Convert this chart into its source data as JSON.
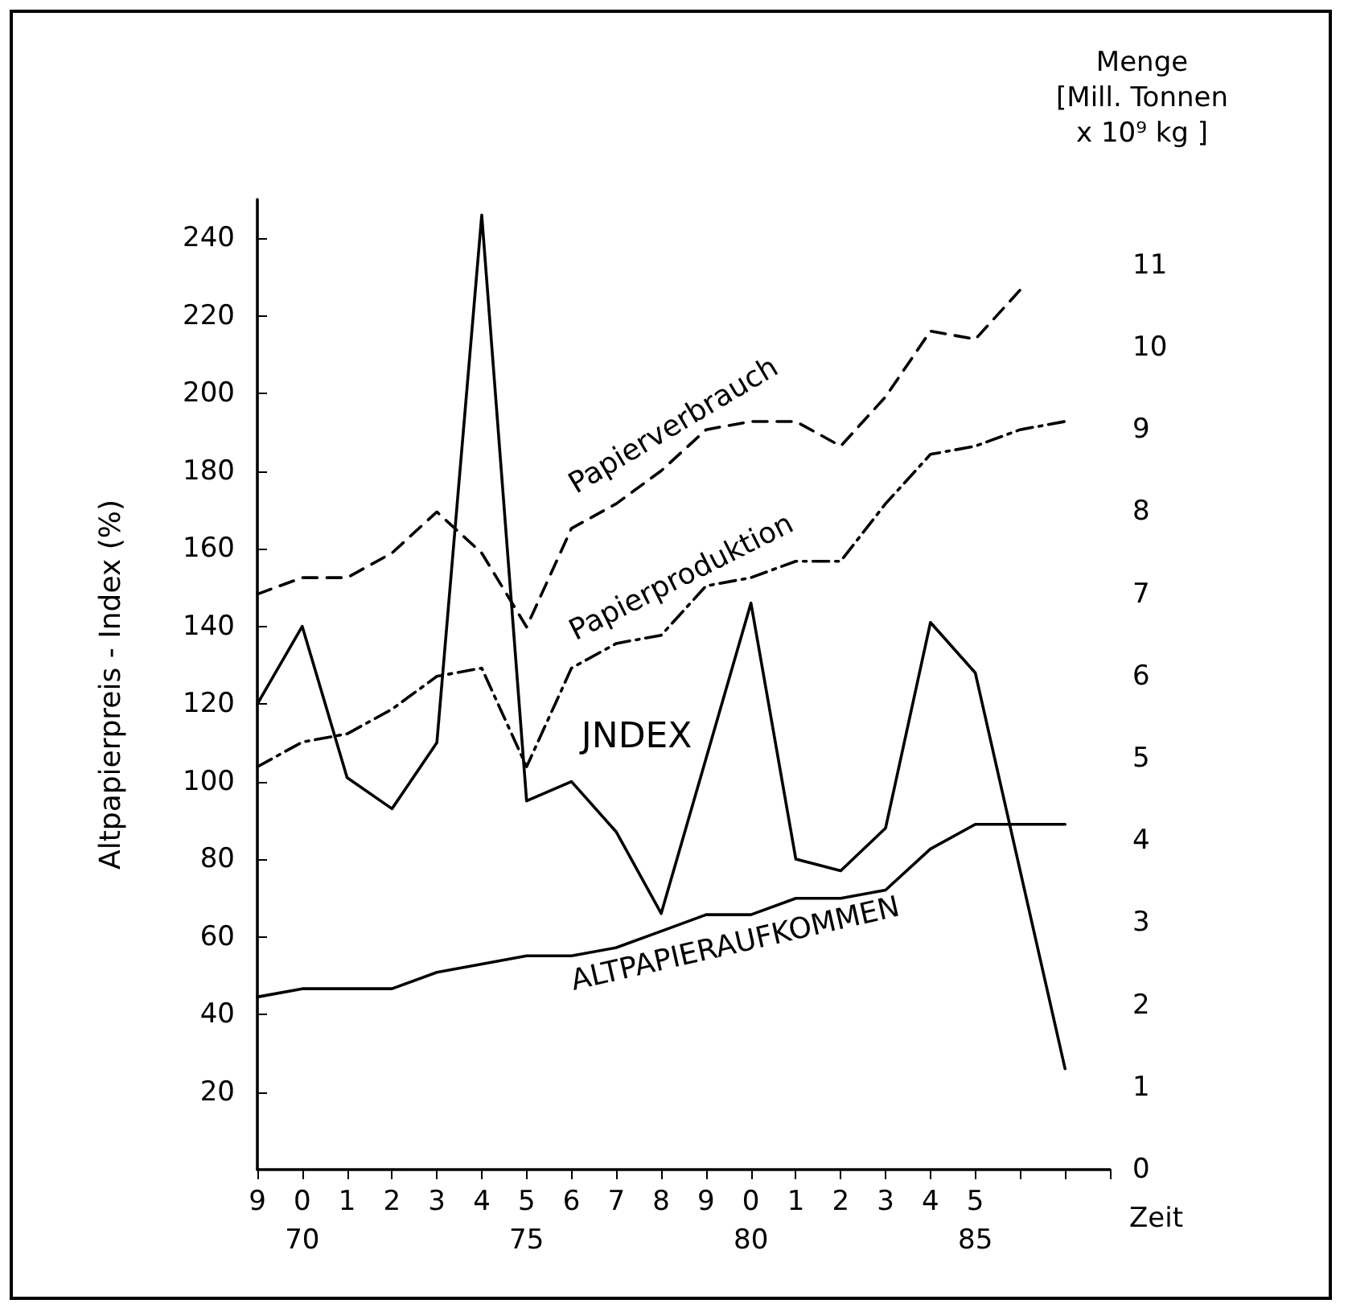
{
  "chart_data": {
    "type": "line",
    "xlabel": "Zeit",
    "ylabel": "Altpapierpreis - Index (%)",
    "y2label": "Menge\n[Mill. Tonnen\nx 10⁹ kg ]",
    "categories": [
      "9",
      "0\n70",
      "1",
      "2",
      "3",
      "4",
      "5\n75",
      "6",
      "7",
      "8",
      "9",
      "0\n80",
      "1",
      "2",
      "3",
      "4",
      "5\n85",
      null,
      null,
      null
    ],
    "ylim": [
      0,
      250
    ],
    "yticks": [
      20,
      40,
      60,
      80,
      100,
      120,
      140,
      160,
      180,
      200,
      220,
      240
    ],
    "y2lim": [
      0,
      11.8
    ],
    "y2ticks": [
      0,
      1,
      2,
      3,
      4,
      5,
      6,
      7,
      8,
      9,
      10,
      11
    ],
    "grid": false,
    "legend": false,
    "marker": "none",
    "series": [
      {
        "name": "Papierverbrauch",
        "axis": "y2",
        "line_style": "dashed",
        "color": "#000000",
        "values": [
          7.0,
          7.2,
          7.2,
          7.5,
          8.0,
          7.5,
          6.6,
          7.8,
          8.1,
          8.5,
          9.0,
          9.1,
          9.1,
          8.8,
          9.4,
          10.2,
          10.1,
          10.7,
          null,
          null
        ]
      },
      {
        "name": "Papierproduktion",
        "axis": "y2",
        "line_style": "dashdot",
        "color": "#000000",
        "values": [
          4.9,
          5.2,
          5.3,
          5.6,
          6.0,
          6.1,
          4.9,
          6.1,
          6.4,
          6.5,
          7.1,
          7.2,
          7.4,
          7.4,
          8.1,
          8.7,
          8.8,
          9.0,
          9.1,
          null
        ]
      },
      {
        "name": "JNDEX",
        "line_style": "solid",
        "color": "#000000",
        "values": [
          120,
          140,
          101,
          93,
          110,
          246,
          95,
          100,
          87,
          66,
          106,
          146,
          80,
          77,
          88,
          141,
          128,
          77,
          26,
          null
        ]
      },
      {
        "name": "ALTPAPIERAUFKOMMEN",
        "axis": "y2",
        "line_style": "solid",
        "color": "#000000",
        "values": [
          2.1,
          2.2,
          2.2,
          2.2,
          2.4,
          2.5,
          2.6,
          2.6,
          2.7,
          2.9,
          3.1,
          3.1,
          3.3,
          3.3,
          3.4,
          3.9,
          4.2,
          4.2,
          4.2,
          null
        ]
      }
    ]
  }
}
